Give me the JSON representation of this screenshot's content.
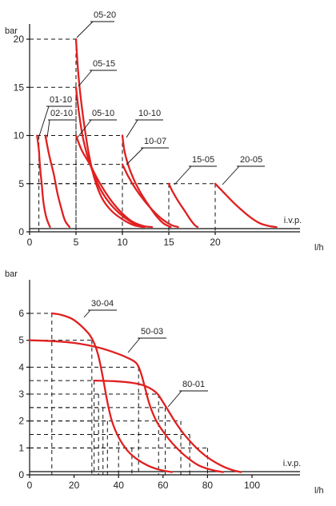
{
  "chart_data": [
    {
      "type": "line",
      "ylabel": "bar",
      "xlabel": "l/h",
      "baseline_label": "i.v.p.",
      "xticks": [
        0,
        5,
        10,
        15,
        20
      ],
      "yticks": [
        0,
        5,
        10,
        15,
        20
      ],
      "xlim": [
        0,
        28
      ],
      "ylim": [
        0,
        22
      ],
      "series": [
        {
          "name": "01-10",
          "points": [
            [
              0.8,
              10
            ],
            [
              1.0,
              8.5
            ],
            [
              1.1,
              7
            ],
            [
              1.3,
              5
            ],
            [
              1.5,
              3
            ],
            [
              1.8,
              1.5
            ],
            [
              2.2,
              0.5
            ]
          ]
        },
        {
          "name": "02-10",
          "points": [
            [
              1.7,
              10
            ],
            [
              2.1,
              8
            ],
            [
              2.6,
              6
            ],
            [
              3.0,
              4
            ],
            [
              3.4,
              2.5
            ],
            [
              3.8,
              1.2
            ],
            [
              4.3,
              0.5
            ]
          ]
        },
        {
          "name": "05-20",
          "points": [
            [
              5,
              20
            ],
            [
              5.2,
              17
            ],
            [
              5.5,
              14
            ],
            [
              5.9,
              11
            ],
            [
              6.4,
              8
            ],
            [
              7.0,
              5.5
            ],
            [
              7.8,
              3.5
            ],
            [
              8.8,
              2.2
            ],
            [
              10,
              1.3
            ],
            [
              11.2,
              0.7
            ],
            [
              12.2,
              0.5
            ]
          ]
        },
        {
          "name": "05-15",
          "points": [
            [
              5,
              15
            ],
            [
              5.3,
              12.5
            ],
            [
              5.7,
              10
            ],
            [
              6.2,
              8
            ],
            [
              6.9,
              6
            ],
            [
              7.7,
              4.3
            ],
            [
              8.6,
              3
            ],
            [
              9.7,
              1.9
            ],
            [
              10.8,
              1.1
            ],
            [
              11.8,
              0.6
            ],
            [
              12.4,
              0.5
            ]
          ]
        },
        {
          "name": "05-10",
          "points": [
            [
              5,
              10
            ],
            [
              5.6,
              8.5
            ],
            [
              6.5,
              7
            ],
            [
              7.3,
              5.5
            ],
            [
              8.1,
              4.2
            ],
            [
              8.9,
              3.1
            ],
            [
              9.9,
              2.0
            ],
            [
              11.0,
              1.1
            ],
            [
              12.3,
              0.6
            ],
            [
              13.2,
              0.5
            ]
          ]
        },
        {
          "name": "10-10",
          "points": [
            [
              10,
              10
            ],
            [
              10.2,
              8.5
            ],
            [
              10.6,
              7
            ],
            [
              11.2,
              5.5
            ],
            [
              12,
              4
            ],
            [
              12.8,
              2.8
            ],
            [
              13.6,
              1.7
            ],
            [
              14.4,
              0.9
            ],
            [
              15.2,
              0.5
            ]
          ]
        },
        {
          "name": "10-07",
          "points": [
            [
              10,
              7
            ],
            [
              10.6,
              5.8
            ],
            [
              11.4,
              4.5
            ],
            [
              12.3,
              3.3
            ],
            [
              13.3,
              2.2
            ],
            [
              14.3,
              1.3
            ],
            [
              15.3,
              0.7
            ],
            [
              16,
              0.5
            ]
          ]
        },
        {
          "name": "15-05",
          "points": [
            [
              15,
              5
            ],
            [
              15.4,
              4.2
            ],
            [
              16,
              3.2
            ],
            [
              16.7,
              2.2
            ],
            [
              17.3,
              1.3
            ],
            [
              17.8,
              0.7
            ],
            [
              18.1,
              0.5
            ]
          ]
        },
        {
          "name": "20-05",
          "points": [
            [
              20,
              5
            ],
            [
              20.8,
              4.2
            ],
            [
              21.8,
              3.2
            ],
            [
              22.8,
              2.3
            ],
            [
              23.8,
              1.5
            ],
            [
              24.8,
              0.9
            ],
            [
              25.8,
              0.6
            ],
            [
              26.6,
              0.5
            ]
          ]
        }
      ],
      "guides": [
        {
          "x": 5,
          "y": 20
        },
        {
          "x": 5,
          "y": 15
        },
        {
          "x": 1,
          "y": 10
        },
        {
          "x": 10,
          "y": 10
        },
        {
          "x": 10,
          "y": 7
        },
        {
          "x": 15,
          "y": 5
        },
        {
          "x": 20,
          "y": 5
        }
      ]
    },
    {
      "type": "line",
      "ylabel": "bar",
      "xlabel": "l/h",
      "baseline_label": "i.v.p.",
      "xticks": [
        0,
        20,
        40,
        60,
        80,
        100
      ],
      "yticks": [
        0,
        1,
        2,
        3,
        4,
        5,
        6
      ],
      "xlim": [
        0,
        122
      ],
      "ylim": [
        0,
        6.8
      ],
      "series": [
        {
          "name": "30-04",
          "points": [
            [
              10,
              6
            ],
            [
              14,
              5.95
            ],
            [
              19,
              5.8
            ],
            [
              23,
              5.55
            ],
            [
              27,
              5.2
            ],
            [
              29,
              4.9
            ],
            [
              31,
              4.4
            ],
            [
              33,
              3.6
            ],
            [
              35,
              2.7
            ],
            [
              37,
              2
            ],
            [
              40,
              1.4
            ],
            [
              44,
              0.9
            ],
            [
              48,
              0.6
            ],
            [
              53,
              0.35
            ],
            [
              58,
              0.2
            ],
            [
              64,
              0.1
            ]
          ]
        },
        {
          "name": "50-03",
          "points": [
            [
              0,
              5
            ],
            [
              10,
              4.97
            ],
            [
              20,
              4.9
            ],
            [
              30,
              4.75
            ],
            [
              38,
              4.55
            ],
            [
              44,
              4.35
            ],
            [
              48,
              4.15
            ],
            [
              50,
              3.8
            ],
            [
              52,
              3.2
            ],
            [
              54,
              2.6
            ],
            [
              57,
              2
            ],
            [
              61,
              1.5
            ],
            [
              65,
              1.1
            ],
            [
              70,
              0.7
            ],
            [
              76,
              0.35
            ],
            [
              82,
              0.18
            ],
            [
              87,
              0.1
            ]
          ]
        },
        {
          "name": "80-01",
          "points": [
            [
              29,
              3.5
            ],
            [
              38,
              3.48
            ],
            [
              46,
              3.42
            ],
            [
              52,
              3.3
            ],
            [
              57,
              3.05
            ],
            [
              60,
              2.7
            ],
            [
              63,
              2.3
            ],
            [
              66,
              1.9
            ],
            [
              70,
              1.45
            ],
            [
              75,
              1.0
            ],
            [
              80,
              0.65
            ],
            [
              86,
              0.35
            ],
            [
              91,
              0.18
            ],
            [
              95,
              0.1
            ]
          ]
        }
      ],
      "guides": [
        {
          "x": 10,
          "y": 6
        },
        {
          "x": 28,
          "y": 5
        },
        {
          "x": 49,
          "y": 4
        },
        {
          "x": 29,
          "y": 3.5
        },
        {
          "x": 31,
          "y": 3
        },
        {
          "x": 58,
          "y": 3
        },
        {
          "x": 33,
          "y": 2.5
        },
        {
          "x": 61,
          "y": 2.5
        },
        {
          "x": 35,
          "y": 2
        },
        {
          "x": 68,
          "y": 2
        },
        {
          "x": 40,
          "y": 1.5
        },
        {
          "x": 72,
          "y": 1.5
        },
        {
          "x": 46,
          "y": 1
        },
        {
          "x": 80,
          "y": 1
        }
      ]
    }
  ]
}
